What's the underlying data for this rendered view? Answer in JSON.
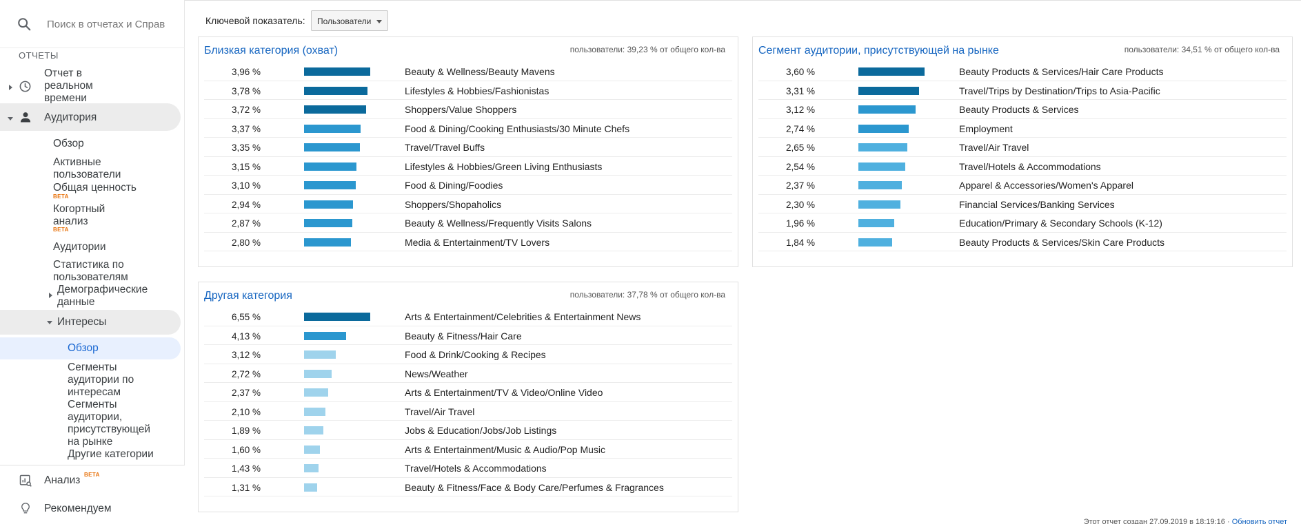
{
  "sidebar": {
    "search_placeholder": "Поиск в отчетах и Справке",
    "reports_label": "ОТЧЕТЫ",
    "realtime": "Отчет в реальном времени",
    "audience": "Аудитория",
    "audience_items": {
      "overview": "Обзор",
      "active_users": "Активные пользователи",
      "lifetime_value": "Общая ценность",
      "cohort": "Когортный анализ",
      "audiences": "Аудитории",
      "user_explorer": "Статистика по пользователям",
      "demographics": "Демографические данные",
      "interests": "Интересы"
    },
    "interests_items": {
      "overview": "Обзор",
      "affinity": "Сегменты аудитории по интересам",
      "in_market": "Сегменты аудитории, присутствующей на рынке",
      "other": "Другие категории"
    },
    "beta": "BETA",
    "analysis": "Анализ",
    "recommendations": "Рекомендуем"
  },
  "main": {
    "metric_label": "Ключевой показатель:",
    "metric_value": "Пользователи",
    "footer_text": "Этот отчет создан 27.09.2019 в 18:19:16 · ",
    "footer_link": "Обновить отчет"
  },
  "panels": {
    "affinity": {
      "title": "Близкая категория (охват)",
      "meta": "пользователи: 39,23 % от общего кол-ва",
      "rows": [
        {
          "pct": "3,96 %",
          "value": 3.96,
          "category": "Beauty & Wellness/Beauty Mavens"
        },
        {
          "pct": "3,78 %",
          "value": 3.78,
          "category": "Lifestyles & Hobbies/Fashionistas"
        },
        {
          "pct": "3,72 %",
          "value": 3.72,
          "category": "Shoppers/Value Shoppers"
        },
        {
          "pct": "3,37 %",
          "value": 3.37,
          "category": "Food & Dining/Cooking Enthusiasts/30 Minute Chefs"
        },
        {
          "pct": "3,35 %",
          "value": 3.35,
          "category": "Travel/Travel Buffs"
        },
        {
          "pct": "3,15 %",
          "value": 3.15,
          "category": "Lifestyles & Hobbies/Green Living Enthusiasts"
        },
        {
          "pct": "3,10 %",
          "value": 3.1,
          "category": "Food & Dining/Foodies"
        },
        {
          "pct": "2,94 %",
          "value": 2.94,
          "category": "Shoppers/Shopaholics"
        },
        {
          "pct": "2,87 %",
          "value": 2.87,
          "category": "Beauty & Wellness/Frequently Visits Salons"
        },
        {
          "pct": "2,80 %",
          "value": 2.8,
          "category": "Media & Entertainment/TV Lovers"
        }
      ]
    },
    "in_market": {
      "title": "Сегмент аудитории, присутствующей на рынке",
      "meta": "пользователи: 34,51 % от общего кол-ва",
      "rows": [
        {
          "pct": "3,60 %",
          "value": 3.6,
          "category": "Beauty Products & Services/Hair Care Products"
        },
        {
          "pct": "3,31 %",
          "value": 3.31,
          "category": "Travel/Trips by Destination/Trips to Asia-Pacific"
        },
        {
          "pct": "3,12 %",
          "value": 3.12,
          "category": "Beauty Products & Services"
        },
        {
          "pct": "2,74 %",
          "value": 2.74,
          "category": "Employment"
        },
        {
          "pct": "2,65 %",
          "value": 2.65,
          "category": "Travel/Air Travel"
        },
        {
          "pct": "2,54 %",
          "value": 2.54,
          "category": "Travel/Hotels & Accommodations"
        },
        {
          "pct": "2,37 %",
          "value": 2.37,
          "category": "Apparel & Accessories/Women's Apparel"
        },
        {
          "pct": "2,30 %",
          "value": 2.3,
          "category": "Financial Services/Banking Services"
        },
        {
          "pct": "1,96 %",
          "value": 1.96,
          "category": "Education/Primary & Secondary Schools (K-12)"
        },
        {
          "pct": "1,84 %",
          "value": 1.84,
          "category": "Beauty Products & Services/Skin Care Products"
        }
      ]
    },
    "other": {
      "title": "Другая категория",
      "meta": "пользователи: 37,78 % от общего кол-ва",
      "rows": [
        {
          "pct": "6,55 %",
          "value": 6.55,
          "category": "Arts & Entertainment/Celebrities & Entertainment News"
        },
        {
          "pct": "4,13 %",
          "value": 4.13,
          "category": "Beauty & Fitness/Hair Care"
        },
        {
          "pct": "3,12 %",
          "value": 3.12,
          "category": "Food & Drink/Cooking & Recipes"
        },
        {
          "pct": "2,72 %",
          "value": 2.72,
          "category": "News/Weather"
        },
        {
          "pct": "2,37 %",
          "value": 2.37,
          "category": "Arts & Entertainment/TV & Video/Online Video"
        },
        {
          "pct": "2,10 %",
          "value": 2.1,
          "category": "Travel/Air Travel"
        },
        {
          "pct": "1,89 %",
          "value": 1.89,
          "category": "Jobs & Education/Jobs/Job Listings"
        },
        {
          "pct": "1,60 %",
          "value": 1.6,
          "category": "Arts & Entertainment/Music & Audio/Pop Music"
        },
        {
          "pct": "1,43 %",
          "value": 1.43,
          "category": "Travel/Hotels & Accommodations"
        },
        {
          "pct": "1,31 %",
          "value": 1.31,
          "category": "Beauty & Fitness/Face & Body Care/Perfumes & Fragrances"
        }
      ]
    }
  },
  "colors": {
    "bar_dark": "#0b6a9c",
    "bar_mid": "#2b97cf",
    "bar_light": "#9fd3ec",
    "accent": "#1565c0",
    "beta": "#e8710a"
  }
}
